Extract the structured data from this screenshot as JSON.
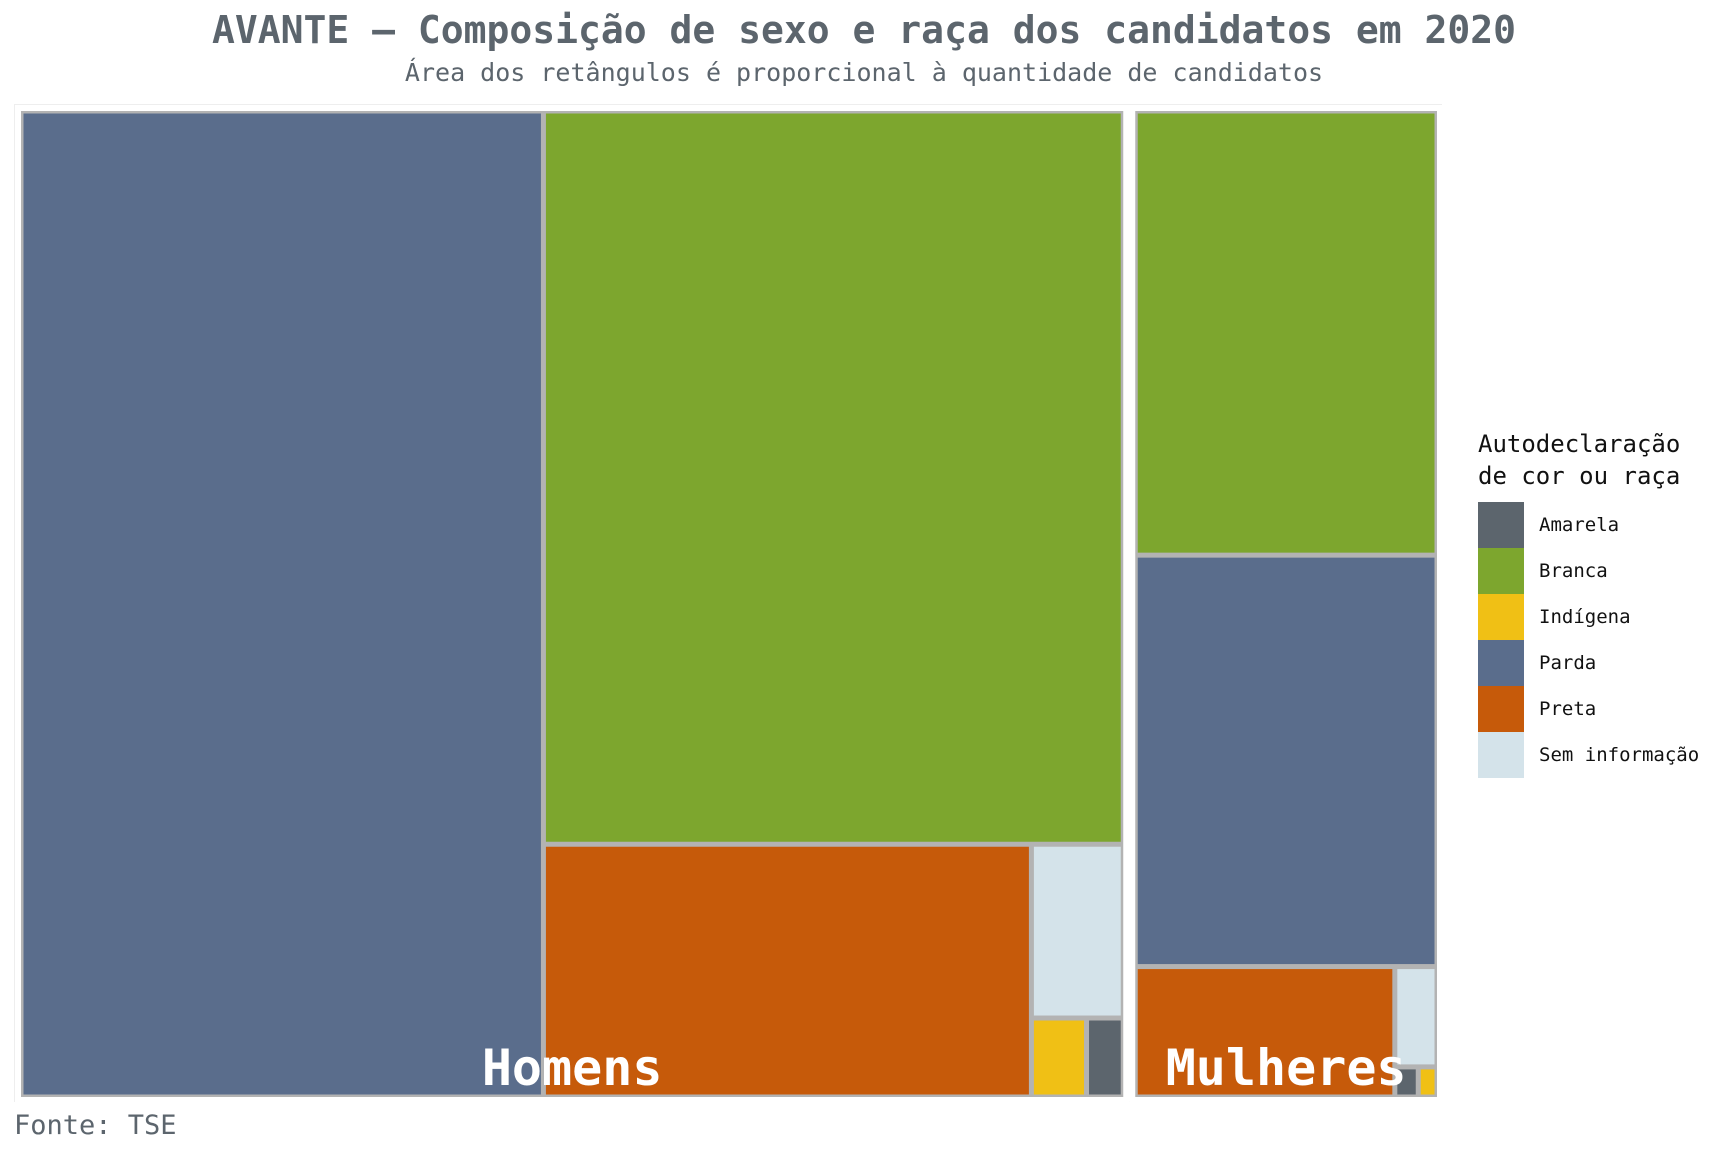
{
  "title": "AVANTE – Composição de sexo e raça dos candidatos em 2020",
  "subtitle": "Área dos retângulos é proporcional à quantidade de candidatos",
  "caption": "Fonte: TSE",
  "legend": {
    "title_lines": [
      "Autodeclaração",
      "de cor ou raça"
    ],
    "items": [
      {
        "label": "Amarela",
        "color": "#5c656d"
      },
      {
        "label": "Branca",
        "color": "#7da62e"
      },
      {
        "label": "Indígena",
        "color": "#f0c015"
      },
      {
        "label": "Parda",
        "color": "#5a6d8c"
      },
      {
        "label": "Preta",
        "color": "#c65a0a"
      },
      {
        "label": "Sem informação",
        "color": "#d4e3ea"
      }
    ],
    "placement": "right"
  },
  "chart_data": {
    "type": "treemap",
    "title": "AVANTE – Composição de sexo e raça dos candidatos em 2020",
    "subtitle": "Área dos retângulos é proporcional à quantidade de candidatos",
    "value_unit": "candidatos",
    "groups": [
      {
        "name": "Homens",
        "children": [
          {
            "category": "Parda",
            "value": 35.5
          },
          {
            "category": "Branca",
            "value": 29.3
          },
          {
            "category": "Preta",
            "value": 8.5
          },
          {
            "category": "Sem informação",
            "value": 1.1
          },
          {
            "category": "Indígena",
            "value": 0.3
          },
          {
            "category": "Amarela",
            "value": 0.2
          }
        ]
      },
      {
        "name": "Mulheres",
        "children": [
          {
            "category": "Parda",
            "value": 8.8
          },
          {
            "category": "Branca",
            "value": 9.5
          },
          {
            "category": "Preta",
            "value": 2.4
          },
          {
            "category": "Sem informação",
            "value": 0.3
          },
          {
            "category": "Amarela",
            "value": 0.05
          },
          {
            "category": "Indígena",
            "value": 0.04
          }
        ]
      }
    ]
  }
}
